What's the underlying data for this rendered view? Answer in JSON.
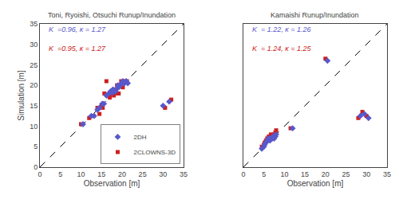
{
  "chart_data": [
    {
      "type": "scatter",
      "title": "Toni, Ryoishi, Otsuchi Runup/Inundation",
      "xlabel": "Observation [m]",
      "ylabel": "Simulation [m]",
      "xlim": [
        0,
        35
      ],
      "ylim": [
        0,
        35
      ],
      "xticks": [
        0,
        5,
        10,
        15,
        20,
        25,
        30,
        35
      ],
      "yticks": [
        0,
        5,
        10,
        15,
        20,
        25,
        30,
        35
      ],
      "grid": false,
      "legend": "lower right",
      "series": [
        {
          "name": "2CLOWNS-3D",
          "color": "#cc2020",
          "marker": "square",
          "x": [
            10.0,
            12.0,
            13.0,
            14.0,
            14.5,
            15.0,
            15.3,
            15.7,
            16.2,
            16.7,
            17.0,
            17.4,
            17.8,
            18.0,
            18.2,
            18.6,
            18.8,
            19.2,
            19.5,
            19.8,
            20.2,
            20.6,
            21.2,
            30.5,
            32.0
          ],
          "values": [
            10.5,
            12.0,
            12.5,
            14.5,
            13.0,
            15.0,
            14.5,
            18.0,
            21.0,
            17.5,
            17.0,
            18.0,
            18.5,
            17.5,
            19.0,
            18.0,
            20.0,
            18.0,
            20.0,
            21.0,
            19.5,
            21.0,
            21.0,
            14.5,
            16.5
          ]
        },
        {
          "name": "2DH",
          "color": "#5858cc",
          "marker": "diamond",
          "x": [
            10.5,
            12.5,
            13.2,
            14.0,
            14.5,
            15.2,
            15.6,
            16.2,
            16.8,
            17.2,
            17.6,
            17.8,
            18.0,
            18.4,
            18.6,
            19.0,
            19.2,
            19.6,
            20.0,
            20.2,
            20.6,
            21.0,
            21.4,
            30.0,
            31.5
          ],
          "values": [
            10.5,
            12.5,
            12.5,
            14.0,
            14.5,
            15.5,
            15.5,
            17.5,
            18.0,
            18.5,
            18.2,
            19.0,
            18.5,
            18.5,
            19.0,
            20.0,
            19.5,
            20.0,
            20.5,
            21.0,
            20.5,
            21.0,
            20.5,
            15.0,
            16.0
          ]
        }
      ],
      "annotations": [
        {
          "text": "K  =0.96, κ = 1.27",
          "color": "#5858cc"
        },
        {
          "text": "K  =0.95, κ = 1.27",
          "color": "#cc2020"
        }
      ]
    },
    {
      "type": "scatter",
      "title": "Kamaishi Runup/Inundation",
      "xlabel": "Observation [m]",
      "xlim": [
        0,
        35
      ],
      "ylim": [
        0,
        35
      ],
      "xticks": [
        0,
        5,
        10,
        15,
        20,
        25,
        30,
        35
      ],
      "yticks": [
        0,
        5,
        10,
        15,
        20,
        25,
        30,
        35
      ],
      "grid": false,
      "tick_labels": "x",
      "series": [
        {
          "color": "#cc2020",
          "marker": "square",
          "x": [
            4.5,
            5.0,
            5.2,
            5.5,
            5.8,
            6.0,
            6.2,
            6.5,
            6.7,
            7.0,
            7.2,
            7.5,
            7.8,
            8.0,
            11.5,
            20.0,
            28.0,
            29.0,
            30.0
          ],
          "values": [
            5.0,
            5.5,
            6.0,
            6.5,
            7.0,
            7.0,
            7.5,
            7.0,
            8.0,
            7.0,
            7.5,
            8.0,
            8.5,
            9.0,
            9.5,
            26.5,
            12.0,
            13.5,
            12.5
          ]
        },
        {
          "color": "#5858cc",
          "marker": "diamond",
          "x": [
            4.5,
            5.0,
            5.2,
            5.5,
            5.8,
            6.0,
            6.2,
            6.5,
            6.7,
            7.0,
            7.2,
            7.5,
            7.8,
            8.0,
            12.0,
            20.5,
            28.5,
            29.5,
            30.5
          ],
          "values": [
            4.5,
            5.0,
            5.5,
            6.0,
            6.5,
            6.8,
            7.0,
            6.5,
            7.0,
            7.0,
            7.5,
            7.0,
            7.5,
            8.0,
            9.5,
            26.0,
            12.5,
            13.0,
            12.0
          ]
        }
      ],
      "annotations": [
        {
          "text": "K  = 1.22, κ = 1.26",
          "color": "#5858cc"
        },
        {
          "text": "K  = 1.24, κ = 1.25",
          "color": "#cc2020"
        }
      ]
    }
  ]
}
